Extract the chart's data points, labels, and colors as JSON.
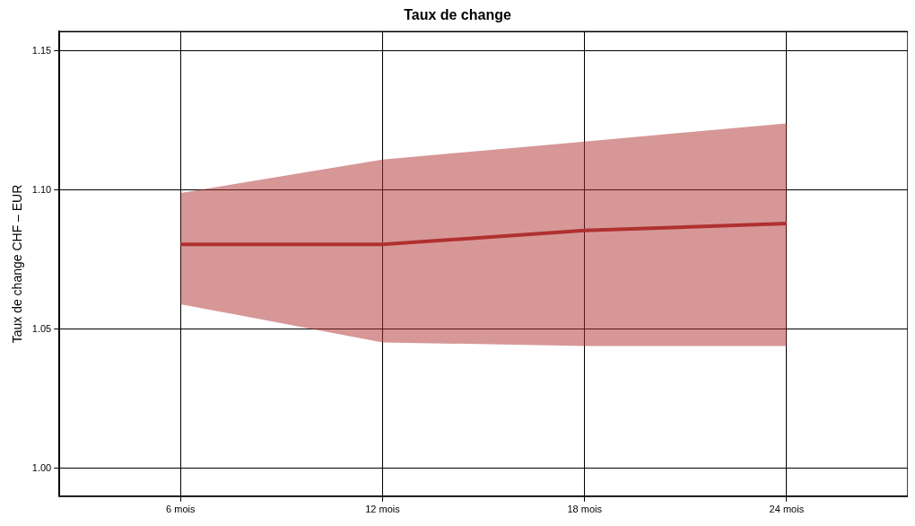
{
  "chart_data": {
    "type": "line",
    "title": "Taux de change",
    "ylabel": "Taux de change CHF – EUR",
    "categories": [
      "6 mois",
      "12 mois",
      "18 mois",
      "24 mois"
    ],
    "series": [
      {
        "color": "#b03030",
        "values": [
          1.0805,
          1.0805,
          1.0855,
          1.088
        ],
        "lower": [
          1.059,
          1.0453,
          1.044,
          1.044
        ],
        "upper": [
          1.099,
          1.111,
          1.1175,
          1.124
        ]
      }
    ],
    "ylim": [
      0.99,
      1.157
    ],
    "yticks": [
      {
        "value": 1,
        "label": "1.00"
      },
      1.05,
      {
        "value": 1.1,
        "label": "1.10"
      },
      1.15
    ],
    "grid": true,
    "legend": false,
    "marker": "none",
    "line_style": "solid"
  }
}
